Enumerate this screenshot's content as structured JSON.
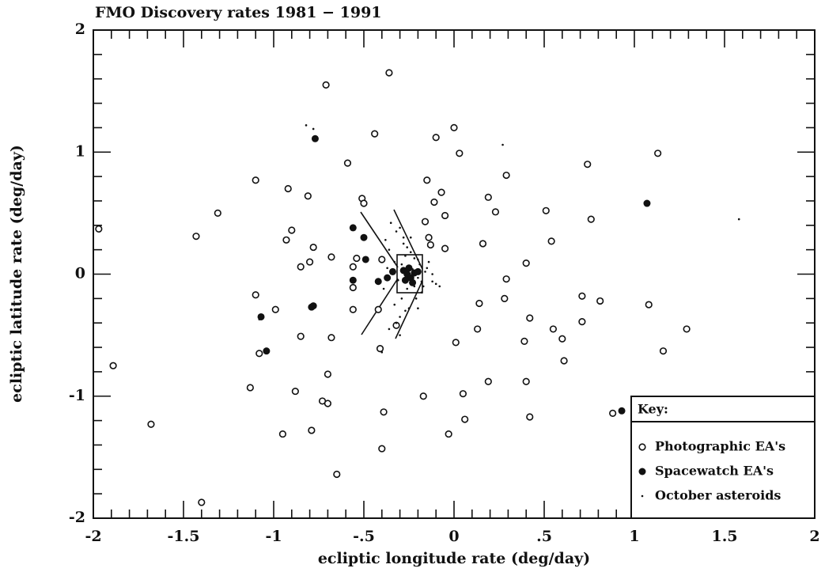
{
  "chart_data": {
    "type": "scatter",
    "title": "FMO Discovery rates 1981 − 1991",
    "x_label": "ecliptic longitude rate (deg/day)",
    "y_label": "ecliptic latitude rate (deg/day)",
    "xlim": [
      -2,
      2
    ],
    "ylim": [
      -2,
      2
    ],
    "xticks": [
      -2,
      -1.5,
      -1,
      {
        "value": -0.5,
        "label": "-.5"
      },
      0,
      {
        "value": 0.5,
        "label": ".5"
      },
      1,
      1.5,
      2
    ],
    "yticks": [
      -2,
      -1,
      0,
      1,
      2
    ],
    "legend": "lower right",
    "legend_title": "Key:",
    "series": [
      {
        "name": "Photographic EA's",
        "color": "#111111",
        "marker": "open",
        "x": [
          -1.97,
          -1.31,
          -1.43,
          -1.89,
          -1.68,
          -1.4,
          -1.1,
          -1.1,
          -0.99,
          -1.08,
          -1.13,
          -0.92,
          -0.9,
          -0.93,
          -0.81,
          -0.85,
          -0.8,
          -0.78,
          -0.85,
          -0.88,
          -0.95,
          -0.79,
          -0.73,
          -0.7,
          -0.7,
          -0.68,
          -0.68,
          -0.71,
          -0.59,
          -0.65,
          -0.56,
          -0.54,
          -0.56,
          -0.56,
          -0.51,
          -0.5,
          -0.44,
          -0.36,
          -0.4,
          -0.42,
          -0.41,
          -0.39,
          -0.4,
          -0.32,
          -0.16,
          -0.14,
          -0.13,
          -0.15,
          -0.11,
          -0.07,
          -0.05,
          -0.05,
          -0.1,
          0.0,
          0.03,
          0.01,
          0.05,
          0.06,
          -0.03,
          -0.17,
          0.16,
          0.19,
          0.23,
          0.29,
          0.29,
          0.28,
          0.14,
          0.13,
          0.19,
          0.39,
          0.42,
          0.4,
          0.4,
          0.42,
          0.51,
          0.54,
          0.55,
          0.6,
          0.61,
          0.71,
          0.71,
          0.74,
          0.76,
          0.81,
          1.08,
          1.13,
          1.16,
          1.29,
          0.88
        ],
        "y": [
          0.37,
          0.5,
          0.31,
          -0.75,
          -1.23,
          -1.87,
          0.77,
          -0.17,
          -0.29,
          -0.65,
          -0.93,
          0.7,
          0.36,
          0.28,
          0.64,
          0.06,
          0.1,
          0.22,
          -0.51,
          -0.96,
          -1.31,
          -1.28,
          -1.04,
          -1.06,
          -0.82,
          -0.52,
          0.14,
          1.55,
          0.91,
          -1.64,
          0.06,
          0.13,
          -0.11,
          -0.29,
          0.62,
          0.58,
          1.15,
          1.65,
          0.12,
          -0.29,
          -0.61,
          -1.13,
          -1.43,
          -0.42,
          0.43,
          0.3,
          0.24,
          0.77,
          0.59,
          0.67,
          0.48,
          0.21,
          1.12,
          1.2,
          0.99,
          -0.56,
          -0.98,
          -1.19,
          -1.31,
          -1.0,
          0.25,
          0.63,
          0.51,
          0.81,
          -0.04,
          -0.2,
          -0.24,
          -0.45,
          -0.88,
          -0.55,
          -0.36,
          0.09,
          -0.88,
          -1.17,
          0.52,
          0.27,
          -0.45,
          -0.53,
          -0.71,
          -0.18,
          -0.39,
          0.9,
          0.45,
          -0.22,
          -0.25,
          0.99,
          -0.63,
          -0.45,
          -1.14
        ]
      },
      {
        "name": "Spacewatch EA's",
        "color": "#111111",
        "marker": "filled",
        "x": [
          -1.07,
          -1.04,
          -0.77,
          -0.79,
          -0.78,
          -0.56,
          -0.5,
          -0.49,
          -0.56,
          -0.42,
          -0.37,
          -0.34,
          -0.28,
          -0.26,
          -0.24,
          -0.22,
          -0.25,
          -0.27,
          -0.23,
          -0.2,
          1.07,
          0.93
        ],
        "y": [
          -0.35,
          -0.63,
          1.11,
          -0.27,
          -0.26,
          0.38,
          0.3,
          0.12,
          -0.05,
          -0.06,
          -0.03,
          0.02,
          0.03,
          0.0,
          -0.03,
          0.01,
          0.05,
          -0.05,
          -0.07,
          0.02,
          0.58,
          -1.12
        ]
      },
      {
        "name": "October asteroids",
        "color": "#111111",
        "marker": "dot",
        "x": [
          1.58,
          0.27,
          -0.82,
          -0.78,
          -1.08,
          -0.4,
          -0.3,
          -0.35,
          -0.32,
          -0.38,
          -0.36,
          -0.28,
          -0.3,
          -0.33,
          -0.27,
          -0.29,
          -0.25,
          -0.22,
          -0.2,
          -0.18,
          -0.15,
          -0.12,
          -0.1,
          -0.3,
          -0.26,
          -0.24,
          -0.21,
          -0.19,
          -0.17,
          -0.14,
          -0.31,
          -0.34,
          -0.37,
          -0.39,
          -0.33,
          -0.28,
          -0.23,
          -0.2,
          -0.16,
          -0.26,
          -0.29,
          -0.22,
          -0.18,
          -0.12,
          -0.08,
          -0.36,
          -0.32,
          -0.27,
          -0.24,
          -0.2
        ],
        "y": [
          0.45,
          1.06,
          1.22,
          1.19,
          -0.37,
          -0.64,
          -0.5,
          0.42,
          0.35,
          0.28,
          0.2,
          0.3,
          0.38,
          0.1,
          0.15,
          -0.2,
          -0.28,
          -0.1,
          0.12,
          -0.15,
          0.05,
          -0.06,
          -0.08,
          -0.35,
          0.22,
          0.18,
          -0.2,
          0.08,
          -0.1,
          0.1,
          -0.05,
          0.0,
          0.05,
          -0.12,
          -0.25,
          0.25,
          0.04,
          -0.03,
          0.02,
          -0.12,
          0.08,
          0.13,
          -0.06,
          0.0,
          -0.1,
          -0.45,
          -0.4,
          -0.3,
          0.3,
          -0.28
        ]
      }
    ]
  }
}
